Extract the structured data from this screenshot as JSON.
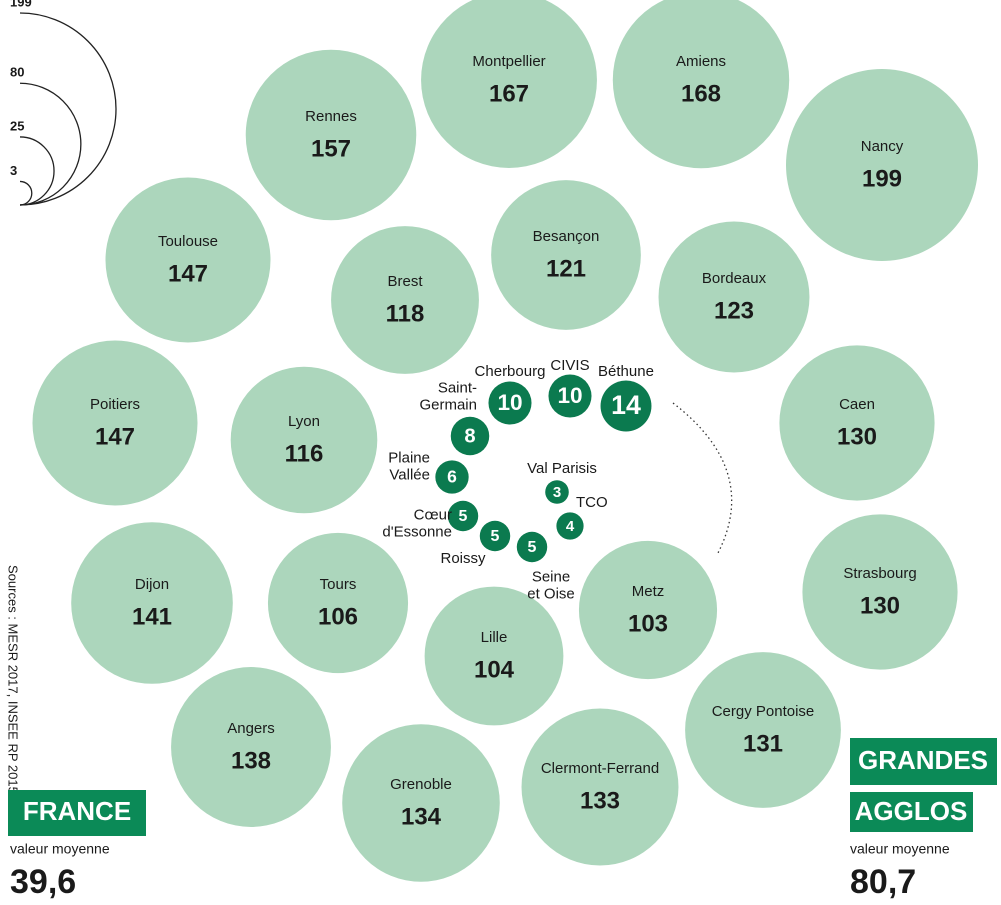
{
  "chart_data": {
    "type": "bubble",
    "groups": [
      {
        "color": "#acd6bc",
        "text_color": "#1a1a1a",
        "categories": [
          "Montpellier",
          "Amiens",
          "Rennes",
          "Nancy",
          "Toulouse",
          "Besançon",
          "Brest",
          "Bordeaux",
          "Poitiers",
          "Lyon",
          "Caen",
          "Dijon",
          "Tours",
          "Strasbourg",
          "Metz",
          "Lille",
          "Cergy Pontoise",
          "Angers",
          "Clermont-Ferrand",
          "Grenoble"
        ],
        "values": [
          167,
          168,
          157,
          199,
          147,
          121,
          118,
          123,
          147,
          116,
          130,
          141,
          106,
          130,
          103,
          104,
          131,
          138,
          133,
          134
        ]
      },
      {
        "color": "#0b7a4f",
        "text_color": "#ffffff",
        "categories": [
          "Cherbourg",
          "CIVIS",
          "Béthune",
          "Saint-\nGermain",
          "Plaine\nVallée",
          "Val Parisis",
          "TCO",
          "Cœur\nd'Essonne",
          "Roissy",
          "Seine\net Oise"
        ],
        "values": [
          10,
          10,
          14,
          8,
          6,
          3,
          4,
          5,
          5,
          5
        ]
      }
    ],
    "size_legend": [
      199,
      80,
      25,
      3
    ],
    "source": "Sources : MESR 2017, INSEE RP 2015.",
    "france": {
      "title": "FRANCE",
      "caption": "valeur moyenne",
      "value": {
        "value": 39.6,
        "label": "39,6"
      }
    },
    "agglos": {
      "title": [
        "GRANDES",
        "AGGLOS"
      ],
      "caption": "valeur moyenne",
      "value": {
        "value": 80.7,
        "label": "80,7"
      }
    }
  }
}
